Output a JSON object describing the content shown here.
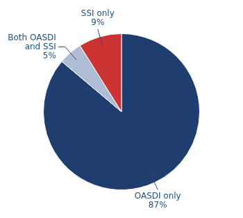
{
  "chart_data": {
    "type": "pie",
    "categories": [
      "OASDI only",
      "Both OASDI\nand SSI",
      "SSI only"
    ],
    "values": [
      87,
      5,
      9
    ],
    "value_labels": [
      "87%",
      "5%",
      "9%"
    ],
    "colors": [
      "#1f3d6e",
      "#b0bcd4",
      "#cc3333"
    ],
    "data_labels": true
  }
}
